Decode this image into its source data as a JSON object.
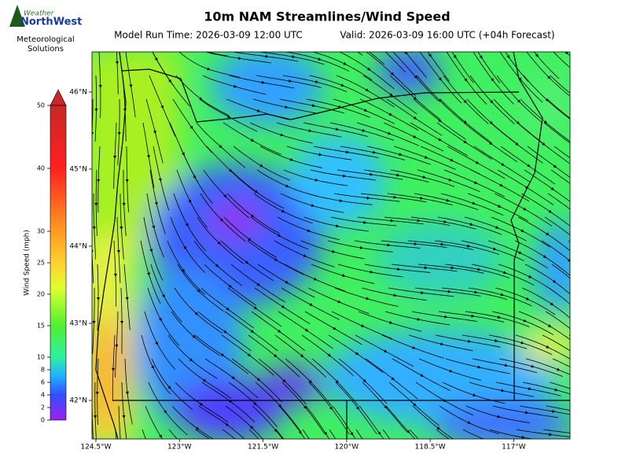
{
  "logo": {
    "line1": "Weather",
    "line2": "NorthWest",
    "caption_line1": "Meteorological",
    "caption_line2": "Solutions"
  },
  "chart_data": {
    "type": "map",
    "title": "10m NAM Streamlines/Wind Speed",
    "subtitle_left": "Model Run Time: 2026-03-09 12:00 UTC",
    "subtitle_right": "Valid: 2026-03-09 16:00 UTC  (+04h Forecast)",
    "xlim": [
      -124.57,
      -115.99
    ],
    "ylim": [
      41.5,
      46.52
    ],
    "xticks": [
      {
        "value": -124.5,
        "label": "124.5°W"
      },
      {
        "value": -123,
        "label": "123°W"
      },
      {
        "value": -121.5,
        "label": "121.5°W"
      },
      {
        "value": -120,
        "label": "120°W"
      },
      {
        "value": -118.5,
        "label": "118.5°W"
      },
      {
        "value": -117,
        "label": "117°W"
      }
    ],
    "yticks": [
      {
        "value": 42,
        "label": "42°N"
      },
      {
        "value": 43,
        "label": "43°N"
      },
      {
        "value": 44,
        "label": "44°N"
      },
      {
        "value": 45,
        "label": "45°N"
      },
      {
        "value": 46,
        "label": "46°N"
      }
    ],
    "colorbar": {
      "label": "Wind Speed (mph)",
      "lim": [
        0,
        50
      ],
      "ticks": [
        0,
        2,
        4,
        6,
        8,
        10,
        15,
        20,
        25,
        30,
        40,
        50
      ]
    }
  }
}
